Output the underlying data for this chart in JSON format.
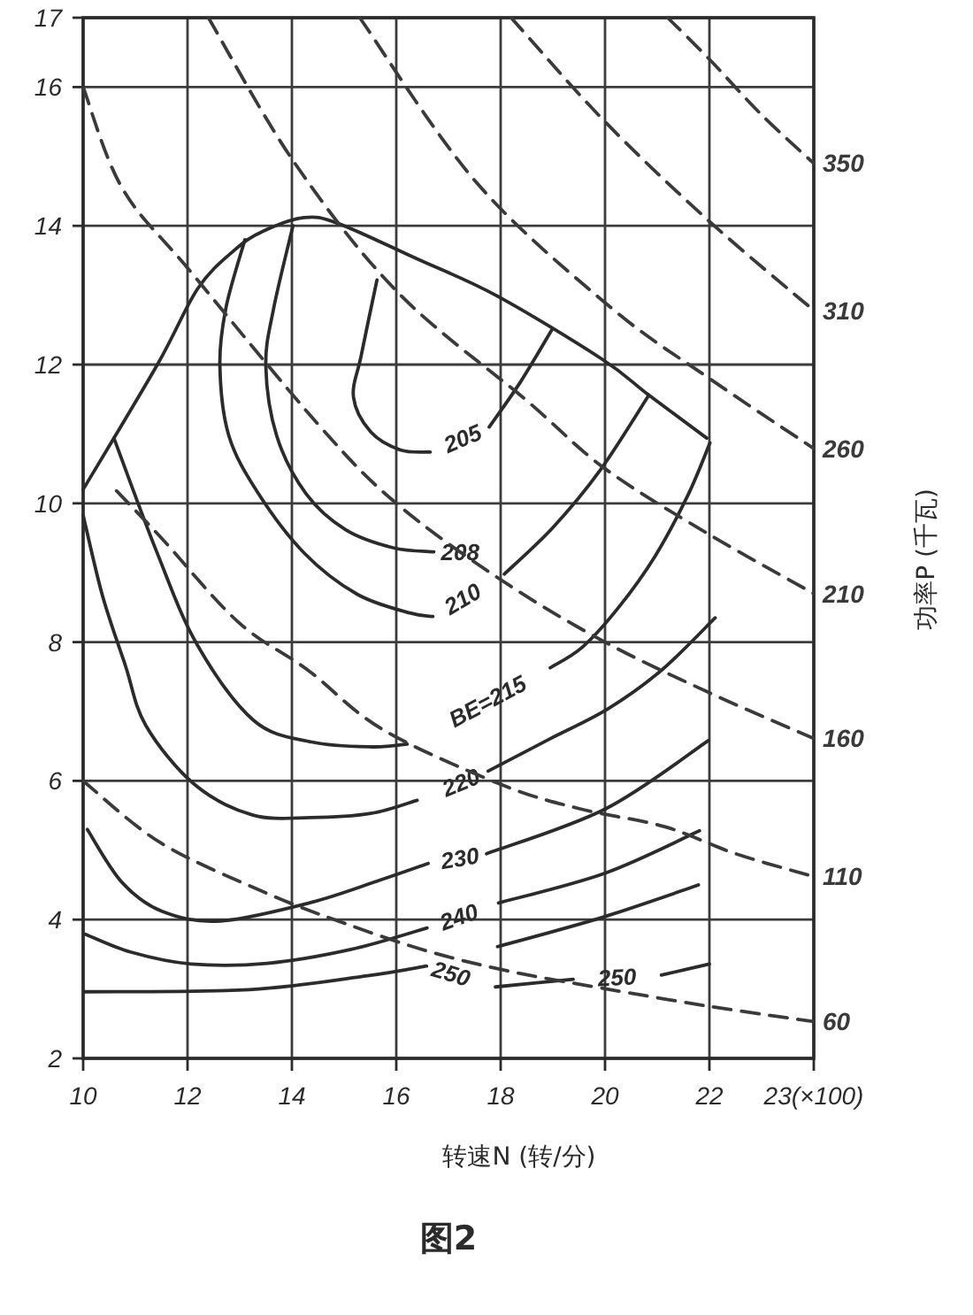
{
  "chart_data": {
    "type": "line",
    "xlabel": "转速N (转/分)",
    "y2label": "功率P (千瓦)",
    "xlim": [
      10,
      24
    ],
    "xticks": [
      10,
      12,
      14,
      16,
      18,
      20,
      22,
      {
        "value": 24,
        "label": "23(×100)"
      }
    ],
    "ylim": [
      2,
      17
    ],
    "yticks": [
      2,
      4,
      6,
      8,
      10,
      12,
      14,
      16,
      17
    ],
    "grid": true,
    "annotations": [
      "图2"
    ],
    "series": [
      {
        "color": "#2b2b2b",
        "line_style": "solid",
        "x": [
          10.0,
          11.43,
          12.2,
          12.9,
          13.44,
          14.23,
          14.9,
          16.38,
          17.93,
          19.94,
          20.84,
          21.95
        ],
        "values": [
          10.2,
          12.01,
          13.1,
          13.65,
          13.92,
          14.12,
          14.03,
          13.53,
          12.99,
          12.08,
          11.56,
          10.94
        ]
      },
      {
        "name": "205",
        "color": "#2b2b2b",
        "line_style": "solid",
        "x": [
          15.63,
          15.33,
          15.18,
          15.51,
          16.08,
          16.65,
          17.27,
          17.78,
          18.38,
          18.98
        ],
        "values": [
          13.22,
          12.14,
          11.53,
          11.03,
          10.77,
          10.74,
          null,
          11.1,
          11.75,
          12.5
        ]
      },
      {
        "name": "208",
        "color": "#2b2b2b",
        "line_style": "solid",
        "x": [
          14.02,
          13.65,
          13.5,
          13.71,
          14.27,
          15.03,
          15.94,
          16.72
        ],
        "values": [
          14.0,
          12.81,
          11.98,
          10.97,
          10.14,
          9.62,
          9.36,
          9.3
        ]
      },
      {
        "name": "210",
        "color": "#2b2b2b",
        "line_style": "solid",
        "x": [
          13.1,
          12.74,
          12.62,
          12.79,
          13.35,
          14.24,
          15.25,
          16.26,
          16.7,
          17.27,
          18.07,
          19.0,
          19.9,
          20.84
        ],
        "values": [
          13.8,
          12.83,
          11.99,
          10.98,
          10.15,
          9.28,
          8.69,
          8.42,
          8.37,
          null,
          8.98,
          9.65,
          10.47,
          11.56
        ]
      },
      {
        "name": "BE=215",
        "color": "#2b2b2b",
        "line_style": "solid",
        "x": [
          10.59,
          11.4,
          12.18,
          13.27,
          14.38,
          15.54,
          16.21,
          17.75,
          18.95,
          19.57,
          20.26,
          20.96,
          21.59,
          22.01
        ],
        "values": [
          10.94,
          9.32,
          7.97,
          6.87,
          6.56,
          6.49,
          6.53,
          null,
          7.63,
          7.93,
          8.5,
          9.24,
          10.12,
          10.87
        ]
      },
      {
        "name": "220",
        "color": "#2b2b2b",
        "line_style": "solid",
        "x": [
          10.0,
          10.37,
          10.81,
          11.2,
          12.13,
          13.24,
          14.36,
          15.51,
          16.4,
          17.24,
          17.76,
          18.93,
          20.06,
          21.09,
          22.11
        ],
        "values": [
          9.83,
          8.67,
          7.66,
          6.8,
          5.95,
          5.51,
          5.47,
          5.53,
          5.72,
          null,
          6.14,
          6.6,
          7.04,
          7.6,
          8.35
        ]
      },
      {
        "name": "230",
        "color": "#2b2b2b",
        "line_style": "solid",
        "x": [
          10.08,
          10.74,
          11.51,
          12.62,
          14.33,
          15.69,
          16.61,
          17.22,
          17.73,
          20.02,
          21.98
        ],
        "values": [
          5.3,
          4.54,
          4.12,
          3.98,
          4.24,
          4.57,
          4.81,
          null,
          4.95,
          5.6,
          6.58
        ]
      },
      {
        "name": "240",
        "color": "#2b2b2b",
        "line_style": "solid",
        "x": [
          10.04,
          10.92,
          12.07,
          13.53,
          15.13,
          16.59,
          17.2,
          17.96,
          20.0,
          21.81
        ],
        "values": [
          3.79,
          3.53,
          3.36,
          3.37,
          3.57,
          3.88,
          null,
          4.24,
          4.67,
          5.28
        ]
      },
      {
        "name": "250",
        "color": "#2b2b2b",
        "line_style": "solid",
        "x": [
          10.02,
          13.18,
          15.45,
          16.58,
          17.05,
          17.9,
          19.39,
          20.23,
          21.08,
          22.0
        ],
        "values": [
          2.96,
          2.99,
          3.19,
          3.33,
          null,
          3.03,
          3.14,
          null,
          3.2,
          3.36
        ]
      },
      {
        "color": "#2b2b2b",
        "line_style": "solid",
        "x": [
          17.94,
          19.98,
          21.79
        ],
        "values": [
          3.61,
          4.04,
          4.5
        ]
      },
      {
        "name": "60",
        "color": "#3a3a3a",
        "line_style": "dashed",
        "x": [
          10.0,
          11.5,
          13.55,
          15.0,
          16.58,
          18.2,
          19.96,
          22.0,
          24.0
        ],
        "values": [
          6.0,
          5.1,
          4.37,
          3.95,
          3.55,
          3.25,
          3.01,
          2.75,
          2.53
        ]
      },
      {
        "name": "110",
        "color": "#3a3a3a",
        "line_style": "dashed",
        "x": [
          10.64,
          11.5,
          12.97,
          14.3,
          15.74,
          18.0,
          19.5,
          21.14,
          22.5,
          24.0
        ],
        "values": [
          10.18,
          9.5,
          8.29,
          7.6,
          6.74,
          5.95,
          5.6,
          5.34,
          4.95,
          4.62
        ]
      },
      {
        "name": "160",
        "color": "#3a3a3a",
        "line_style": "dashed",
        "x": [
          10.0,
          10.75,
          12.07,
          14.5,
          16.0,
          18.0,
          20.0,
          22.0,
          24.0
        ],
        "values": [
          16.0,
          14.54,
          13.33,
          11.14,
          10.0,
          8.9,
          8.0,
          7.27,
          6.61
        ]
      },
      {
        "name": "210",
        "color": "#3a3a3a",
        "line_style": "dashed",
        "x": [
          12.4,
          14.04,
          16.03,
          18.47,
          20.0,
          22.0,
          24.0
        ],
        "values": [
          17,
          14.92,
          13.04,
          11.5,
          10.5,
          9.55,
          8.7
        ]
      },
      {
        "name": "260",
        "color": "#3a3a3a",
        "line_style": "dashed",
        "x": [
          15.3,
          17.53,
          20.1,
          22.0,
          24.0
        ],
        "values": [
          17,
          14.63,
          12.83,
          11.8,
          10.79
        ]
      },
      {
        "name": "310",
        "color": "#3a3a3a",
        "line_style": "dashed",
        "x": [
          18.2,
          20.0,
          21.99,
          24.0
        ],
        "values": [
          17,
          15.5,
          14.07,
          12.78
        ]
      },
      {
        "name": "350",
        "color": "#3a3a3a",
        "line_style": "dashed",
        "x": [
          21.2,
          22.0,
          23.0,
          24.0
        ],
        "values": [
          17,
          16.4,
          15.6,
          14.9
        ]
      }
    ]
  }
}
